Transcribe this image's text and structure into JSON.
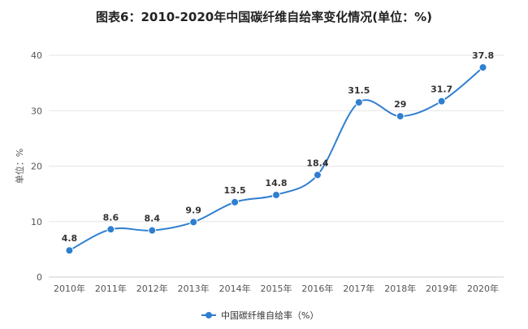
{
  "chart_data": {
    "type": "line",
    "title": "图表6：2010-2020年中国碳纤维自给率变化情况(单位：%)",
    "ylabel": "单位：%",
    "xlabel": "",
    "categories": [
      "2010年",
      "2011年",
      "2012年",
      "2013年",
      "2014年",
      "2015年",
      "2016年",
      "2017年",
      "2018年",
      "2019年",
      "2020年"
    ],
    "series": [
      {
        "name": "中国碳纤维自给率（%）",
        "values": [
          4.8,
          8.6,
          8.4,
          9.9,
          13.5,
          14.8,
          18.4,
          31.5,
          29,
          31.7,
          37.8
        ]
      }
    ],
    "data_labels": [
      "4.8",
      "8.6",
      "8.4",
      "9.9",
      "13.5",
      "14.8",
      "18.4",
      "31.5",
      "29",
      "31.7",
      "37.8"
    ],
    "ylim": [
      0,
      40
    ],
    "yticks": [
      0,
      10,
      20,
      30,
      40
    ],
    "grid": true,
    "smooth": true,
    "legend_position": "bottom-center",
    "colors": {
      "line": "#2f7fd0",
      "grid": "#e6e6e6"
    }
  }
}
